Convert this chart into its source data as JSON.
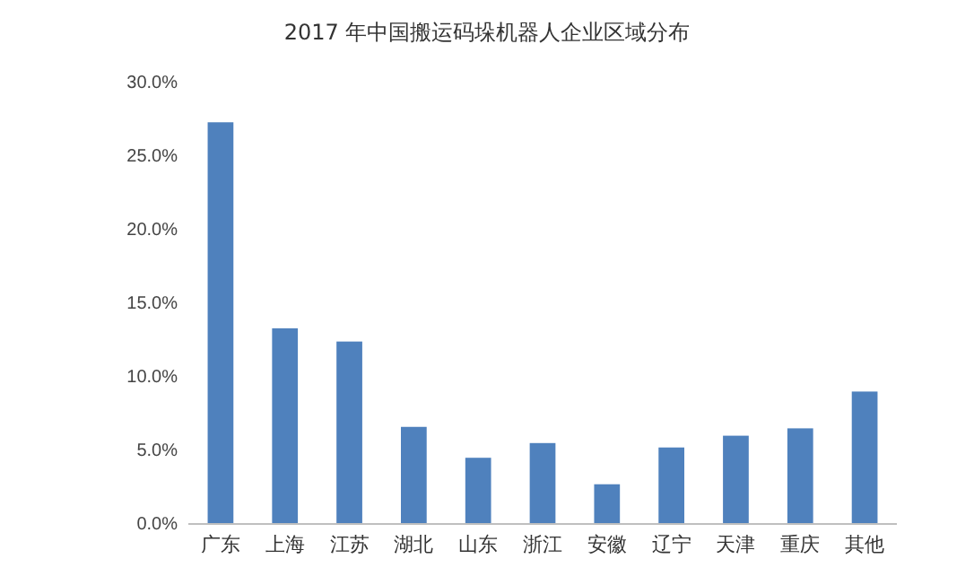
{
  "chart_data": {
    "type": "bar",
    "title": "2017 年中国搬运码垛机器人企业区域分布",
    "categories": [
      "广东",
      "上海",
      "江苏",
      "湖北",
      "山东",
      "浙江",
      "安徽",
      "辽宁",
      "天津",
      "重庆",
      "其他"
    ],
    "values": [
      27.3,
      13.3,
      12.4,
      6.6,
      4.5,
      5.5,
      2.7,
      5.2,
      6.0,
      6.5,
      9.0
    ],
    "color": "#4f81bd",
    "ylim": [
      0,
      30
    ],
    "yticks": [
      {
        "value": 0,
        "label": "0.0%"
      },
      {
        "value": 5,
        "label": "5.0%"
      },
      {
        "value": 10,
        "label": "10.0%"
      },
      {
        "value": 15,
        "label": "15.0%"
      },
      {
        "value": 20,
        "label": "20.0%"
      },
      {
        "value": 25,
        "label": "25.0%"
      },
      {
        "value": 30,
        "label": "30.0%"
      }
    ],
    "grid": false
  }
}
